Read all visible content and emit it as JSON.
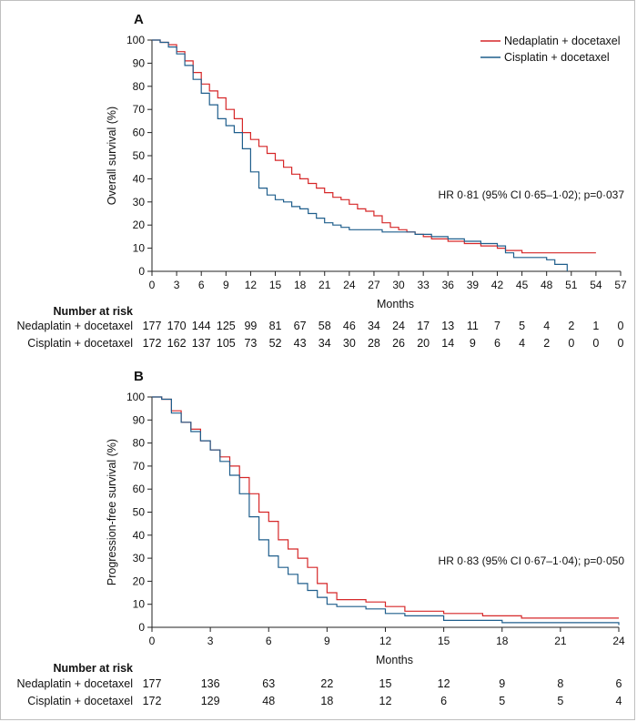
{
  "chart_data": [
    {
      "type": "line",
      "panel": "A",
      "xlabel": "Months",
      "ylabel": "Overall survival (%)",
      "xlim": [
        0,
        57
      ],
      "ylim": [
        0,
        100
      ],
      "x_ticks": [
        0,
        3,
        6,
        9,
        12,
        15,
        18,
        21,
        24,
        27,
        30,
        33,
        36,
        39,
        42,
        45,
        48,
        51,
        54,
        57
      ],
      "y_ticks": [
        0,
        10,
        20,
        30,
        40,
        50,
        60,
        70,
        80,
        90,
        100
      ],
      "grid": false,
      "legend_position": "top-right",
      "annotation": "HR 0·81 (95% CI 0·65–1·02); p=0·037",
      "series": [
        {
          "name": "Nedaplatin + docetaxel",
          "color": "#d62728",
          "points": [
            [
              0,
              100
            ],
            [
              1,
              99
            ],
            [
              2,
              98
            ],
            [
              3,
              95
            ],
            [
              4,
              91
            ],
            [
              5,
              86
            ],
            [
              6,
              81
            ],
            [
              7,
              78
            ],
            [
              8,
              75
            ],
            [
              9,
              70
            ],
            [
              10,
              66
            ],
            [
              11,
              60
            ],
            [
              12,
              57
            ],
            [
              13,
              54
            ],
            [
              14,
              51
            ],
            [
              15,
              48
            ],
            [
              16,
              45
            ],
            [
              17,
              42
            ],
            [
              18,
              40
            ],
            [
              19,
              38
            ],
            [
              20,
              36
            ],
            [
              21,
              34
            ],
            [
              22,
              32
            ],
            [
              23,
              31
            ],
            [
              24,
              29
            ],
            [
              25,
              27
            ],
            [
              26,
              26
            ],
            [
              27,
              24
            ],
            [
              28,
              21
            ],
            [
              29,
              19
            ],
            [
              30,
              18
            ],
            [
              31,
              17
            ],
            [
              32,
              16
            ],
            [
              33,
              15
            ],
            [
              34,
              14
            ],
            [
              35,
              14
            ],
            [
              36,
              13
            ],
            [
              38,
              12
            ],
            [
              40,
              11
            ],
            [
              42,
              10
            ],
            [
              43,
              9
            ],
            [
              45,
              8
            ],
            [
              54,
              8
            ]
          ]
        },
        {
          "name": "Cisplatin + docetaxel",
          "color": "#1f5e8c",
          "points": [
            [
              0,
              100
            ],
            [
              1,
              99
            ],
            [
              2,
              97
            ],
            [
              3,
              94
            ],
            [
              4,
              89
            ],
            [
              5,
              83
            ],
            [
              6,
              77
            ],
            [
              7,
              72
            ],
            [
              8,
              66
            ],
            [
              9,
              63
            ],
            [
              10,
              60
            ],
            [
              11,
              53
            ],
            [
              12,
              43
            ],
            [
              13,
              36
            ],
            [
              14,
              33
            ],
            [
              15,
              31
            ],
            [
              16,
              30
            ],
            [
              17,
              28
            ],
            [
              18,
              27
            ],
            [
              19,
              25
            ],
            [
              20,
              23
            ],
            [
              21,
              21
            ],
            [
              22,
              20
            ],
            [
              23,
              19
            ],
            [
              24,
              18
            ],
            [
              26,
              18
            ],
            [
              28,
              17
            ],
            [
              30,
              17
            ],
            [
              32,
              16
            ],
            [
              34,
              15
            ],
            [
              36,
              14
            ],
            [
              38,
              13
            ],
            [
              40,
              12
            ],
            [
              42,
              11
            ],
            [
              43,
              8
            ],
            [
              44,
              6
            ],
            [
              48,
              5
            ],
            [
              49,
              3
            ],
            [
              50,
              3
            ],
            [
              50.5,
              0
            ]
          ]
        }
      ],
      "number_at_risk": {
        "header": "Number at risk",
        "rows": [
          {
            "label": "Nedaplatin + docetaxel",
            "values": [
              "177",
              "170",
              "144",
              "125",
              "99",
              "81",
              "67",
              "58",
              "46",
              "34",
              "24",
              "17",
              "13",
              "11",
              "7",
              "5",
              "4",
              "2",
              "1",
              "0"
            ]
          },
          {
            "label": "Cisplatin + docetaxel",
            "values": [
              "172",
              "162",
              "137",
              "105",
              "73",
              "52",
              "43",
              "34",
              "30",
              "28",
              "26",
              "20",
              "14",
              "9",
              "6",
              "4",
              "2",
              "0",
              "0",
              "0"
            ]
          }
        ]
      }
    },
    {
      "type": "line",
      "panel": "B",
      "xlabel": "Months",
      "ylabel": "Progression-free survival (%)",
      "xlim": [
        0,
        24
      ],
      "ylim": [
        0,
        100
      ],
      "x_ticks": [
        0,
        3,
        6,
        9,
        12,
        15,
        18,
        21,
        24
      ],
      "y_ticks": [
        0,
        10,
        20,
        30,
        40,
        50,
        60,
        70,
        80,
        90,
        100
      ],
      "grid": false,
      "annotation": "HR 0·83 (95% CI 0·67–1·04); p=0·050",
      "series": [
        {
          "name": "Nedaplatin + docetaxel",
          "color": "#d62728",
          "points": [
            [
              0,
              100
            ],
            [
              0.5,
              99
            ],
            [
              1,
              94
            ],
            [
              1.5,
              89
            ],
            [
              2,
              86
            ],
            [
              2.5,
              81
            ],
            [
              3,
              77
            ],
            [
              3.5,
              74
            ],
            [
              4,
              70
            ],
            [
              4.5,
              65
            ],
            [
              5,
              58
            ],
            [
              5.5,
              50
            ],
            [
              6,
              46
            ],
            [
              6.5,
              38
            ],
            [
              7,
              34
            ],
            [
              7.5,
              30
            ],
            [
              8,
              26
            ],
            [
              8.5,
              19
            ],
            [
              9,
              15
            ],
            [
              9.5,
              12
            ],
            [
              11,
              11
            ],
            [
              12,
              9
            ],
            [
              13,
              7
            ],
            [
              15,
              6
            ],
            [
              17,
              5
            ],
            [
              19,
              4
            ],
            [
              21,
              4
            ],
            [
              24,
              4
            ]
          ]
        },
        {
          "name": "Cisplatin + docetaxel",
          "color": "#1f5e8c",
          "points": [
            [
              0,
              100
            ],
            [
              0.5,
              99
            ],
            [
              1,
              93
            ],
            [
              1.5,
              89
            ],
            [
              2,
              85
            ],
            [
              2.5,
              81
            ],
            [
              3,
              77
            ],
            [
              3.5,
              72
            ],
            [
              4,
              66
            ],
            [
              4.5,
              58
            ],
            [
              5,
              48
            ],
            [
              5.5,
              38
            ],
            [
              6,
              31
            ],
            [
              6.5,
              26
            ],
            [
              7,
              23
            ],
            [
              7.5,
              19
            ],
            [
              8,
              16
            ],
            [
              8.5,
              13
            ],
            [
              9,
              10
            ],
            [
              9.5,
              9
            ],
            [
              11,
              8
            ],
            [
              12,
              6
            ],
            [
              13,
              5
            ],
            [
              15,
              3
            ],
            [
              18,
              2
            ],
            [
              21,
              2
            ],
            [
              23,
              2
            ],
            [
              24,
              1
            ]
          ]
        }
      ],
      "number_at_risk": {
        "header": "Number at risk",
        "rows": [
          {
            "label": "Nedaplatin + docetaxel",
            "values": [
              "177",
              "136",
              "63",
              "22",
              "15",
              "12",
              "9",
              "8",
              "6"
            ]
          },
          {
            "label": "Cisplatin + docetaxel",
            "values": [
              "172",
              "129",
              "48",
              "18",
              "12",
              "6",
              "5",
              "5",
              "4"
            ]
          }
        ]
      }
    }
  ]
}
